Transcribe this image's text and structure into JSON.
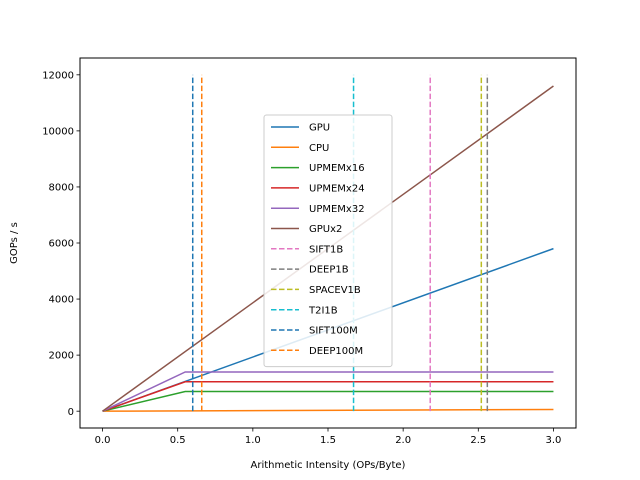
{
  "chart_data": {
    "type": "line",
    "title": "",
    "xlabel": "Arithmetic Intensity (OPs/Byte)",
    "ylabel": "GOPs / s",
    "xlim": [
      -0.15,
      3.15
    ],
    "ylim": [
      -600,
      12600
    ],
    "xticks": [
      0.0,
      0.5,
      1.0,
      1.5,
      2.0,
      2.5,
      3.0
    ],
    "xtick_labels": [
      "0.0",
      "0.5",
      "1.0",
      "1.5",
      "2.0",
      "2.5",
      "3.0"
    ],
    "yticks": [
      0,
      2000,
      4000,
      6000,
      8000,
      10000,
      12000
    ],
    "ytick_labels": [
      "0",
      "2000",
      "4000",
      "6000",
      "8000",
      "10000",
      "12000"
    ],
    "grid": false,
    "legend_position": "center",
    "series": [
      {
        "name": "GPU",
        "style": "solid",
        "color": "#1f77b4",
        "x": [
          0,
          0.58,
          3.0
        ],
        "y": [
          0,
          1120,
          5800
        ]
      },
      {
        "name": "CPU",
        "style": "solid",
        "color": "#ff7f0e",
        "x": [
          0,
          3.0
        ],
        "y": [
          0,
          60
        ]
      },
      {
        "name": "UPMEMx16",
        "style": "solid",
        "color": "#2ca02c",
        "x": [
          0,
          0.55,
          3.0
        ],
        "y": [
          0,
          700,
          700
        ]
      },
      {
        "name": "UPMEMx24",
        "style": "solid",
        "color": "#d62728",
        "x": [
          0,
          0.55,
          3.0
        ],
        "y": [
          0,
          1050,
          1050
        ]
      },
      {
        "name": "UPMEMx32",
        "style": "solid",
        "color": "#9467bd",
        "x": [
          0,
          0.55,
          3.0
        ],
        "y": [
          0,
          1400,
          1400
        ]
      },
      {
        "name": "GPUx2",
        "style": "solid",
        "color": "#8c564b",
        "x": [
          0,
          3.0
        ],
        "y": [
          0,
          11600
        ]
      },
      {
        "name": "SIFT1B",
        "style": "dashed",
        "color": "#e377c2",
        "x": [
          2.18,
          2.18
        ],
        "y": [
          0,
          12000
        ]
      },
      {
        "name": "DEEP1B",
        "style": "dashed",
        "color": "#7f7f7f",
        "x": [
          2.56,
          2.56
        ],
        "y": [
          0,
          12000
        ]
      },
      {
        "name": "SPACEV1B",
        "style": "dashed",
        "color": "#bcbd22",
        "x": [
          2.52,
          2.52
        ],
        "y": [
          0,
          12000
        ]
      },
      {
        "name": "T2I1B",
        "style": "dashed",
        "color": "#17becf",
        "x": [
          1.67,
          1.67
        ],
        "y": [
          0,
          12000
        ]
      },
      {
        "name": "SIFT100M",
        "style": "dashed",
        "color": "#1f77b4",
        "x": [
          0.6,
          0.6
        ],
        "y": [
          0,
          12000
        ]
      },
      {
        "name": "DEEP100M",
        "style": "dashed",
        "color": "#ff7f0e",
        "x": [
          0.66,
          0.66
        ],
        "y": [
          0,
          12000
        ]
      }
    ]
  }
}
